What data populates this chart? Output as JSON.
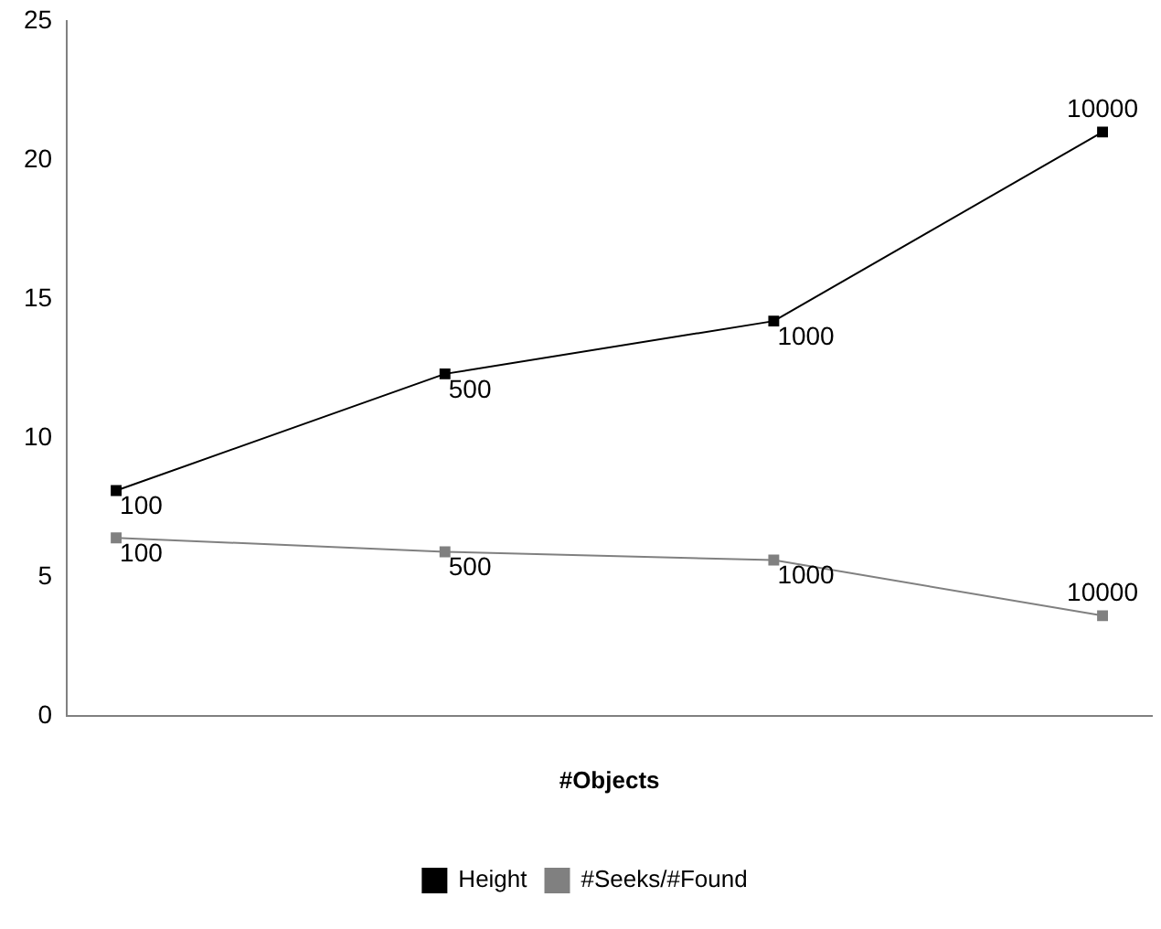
{
  "chart_data": {
    "type": "line",
    "xlabel": "#Objects",
    "categories": [
      null,
      null,
      null,
      null
    ],
    "series": [
      {
        "name": "Height",
        "color": "#000000",
        "values": [
          8.1,
          12.3,
          14.2,
          21.0
        ]
      },
      {
        "name": "#Seeks/#Found",
        "color": "#808080",
        "values": [
          6.4,
          5.9,
          5.6,
          3.6
        ]
      }
    ],
    "annotations": [
      "100",
      "500",
      "1000",
      "10000",
      "100",
      "500",
      "1000",
      "10000"
    ],
    "ylim": [
      0,
      25
    ],
    "yticks": [
      0,
      5,
      10,
      15,
      20,
      25
    ],
    "tick_labels": "y",
    "grid": false,
    "legend": "bottom",
    "marker": "square",
    "line_style": "solid"
  }
}
